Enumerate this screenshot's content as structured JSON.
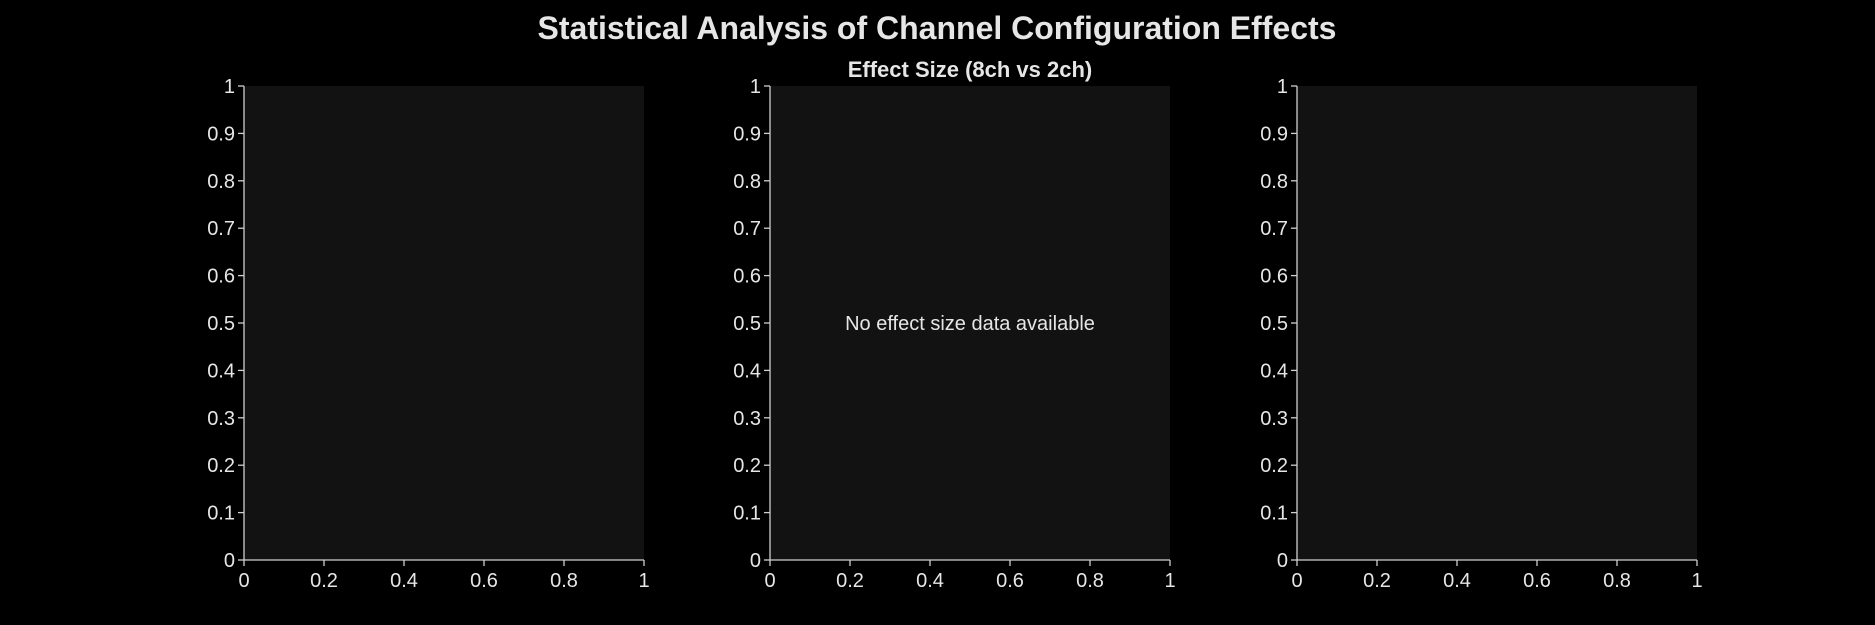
{
  "figure": {
    "title": "Statistical Analysis of Channel Configuration Effects"
  },
  "chart_data": [
    {
      "type": "scatter",
      "title": "",
      "xlabel": "",
      "ylabel": "",
      "xlim": [
        0,
        1
      ],
      "ylim": [
        0,
        1
      ],
      "x_ticks": [
        "0",
        "0.2",
        "0.4",
        "0.6",
        "0.8",
        "1"
      ],
      "y_ticks": [
        "0",
        "0.1",
        "0.2",
        "0.3",
        "0.4",
        "0.5",
        "0.6",
        "0.7",
        "0.8",
        "0.9",
        "1"
      ],
      "series": [],
      "annotation": ""
    },
    {
      "type": "bar",
      "title": "Effect Size (8ch vs 2ch)",
      "xlabel": "",
      "ylabel": "",
      "xlim": [
        0,
        1
      ],
      "ylim": [
        0,
        1
      ],
      "x_ticks": [
        "0",
        "0.2",
        "0.4",
        "0.6",
        "0.8",
        "1"
      ],
      "y_ticks": [
        "0",
        "0.1",
        "0.2",
        "0.3",
        "0.4",
        "0.5",
        "0.6",
        "0.7",
        "0.8",
        "0.9",
        "1"
      ],
      "series": [],
      "annotation": "No effect size data available"
    },
    {
      "type": "scatter",
      "title": "",
      "xlabel": "",
      "ylabel": "",
      "xlim": [
        0,
        1
      ],
      "ylim": [
        0,
        1
      ],
      "x_ticks": [
        "0",
        "0.2",
        "0.4",
        "0.6",
        "0.8",
        "1"
      ],
      "y_ticks": [
        "0",
        "0.1",
        "0.2",
        "0.3",
        "0.4",
        "0.5",
        "0.6",
        "0.7",
        "0.8",
        "0.9",
        "1"
      ],
      "series": [],
      "annotation": ""
    }
  ],
  "colors": {
    "background": "#000000",
    "plot_background": "#121212",
    "text": "#e6e6e6",
    "axis": "#cfcfcf"
  }
}
